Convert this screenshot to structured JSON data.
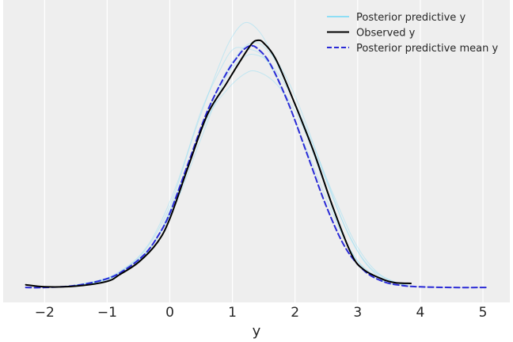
{
  "chart_data": {
    "type": "line",
    "title": "",
    "xlabel": "y",
    "ylabel": "",
    "xlim": [
      -2.65,
      5.4
    ],
    "ylim": [
      0,
      0.5
    ],
    "grid": true,
    "background_color": "#eeeeee",
    "x_ticks": [
      -2,
      -1,
      0,
      1,
      2,
      3,
      4,
      5
    ],
    "x_tick_labels": [
      "−2",
      "−1",
      "0",
      "1",
      "2",
      "3",
      "4",
      "5"
    ],
    "legend": {
      "placement": "top-right",
      "entries": [
        {
          "label": "Posterior predictive y",
          "color": "#6fd8f7",
          "style": "solid"
        },
        {
          "label": "Observed y",
          "color": "#000000",
          "style": "solid"
        },
        {
          "label": "Posterior predictive mean y",
          "color": "#2a2ad6",
          "style": "dashed"
        }
      ]
    },
    "series": [
      {
        "name": "Observed y",
        "color": "#000000",
        "style": "solid",
        "x": [
          -2.3,
          -2.0,
          -1.5,
          -1.0,
          -0.8,
          -0.5,
          -0.2,
          0.0,
          0.3,
          0.6,
          0.9,
          1.1,
          1.3,
          1.4,
          1.5,
          1.7,
          2.0,
          2.3,
          2.6,
          2.9,
          3.1,
          3.4,
          3.6,
          3.85
        ],
        "y": [
          0.005,
          0.002,
          0.003,
          0.01,
          0.02,
          0.038,
          0.067,
          0.102,
          0.18,
          0.255,
          0.3,
          0.33,
          0.358,
          0.364,
          0.36,
          0.335,
          0.27,
          0.2,
          0.12,
          0.05,
          0.027,
          0.013,
          0.008,
          0.007
        ]
      },
      {
        "name": "Posterior predictive mean y",
        "color": "#2a2ad6",
        "style": "dashed",
        "x": [
          -2.3,
          -2.0,
          -1.5,
          -1.0,
          -0.7,
          -0.4,
          -0.2,
          0.0,
          0.3,
          0.6,
          0.9,
          1.1,
          1.2,
          1.3,
          1.4,
          1.6,
          1.9,
          2.2,
          2.5,
          2.8,
          3.1,
          3.4,
          3.7,
          4.0,
          4.5,
          5.05
        ],
        "y": [
          0.001,
          0.001,
          0.004,
          0.014,
          0.028,
          0.05,
          0.075,
          0.11,
          0.185,
          0.26,
          0.315,
          0.342,
          0.352,
          0.356,
          0.352,
          0.33,
          0.27,
          0.195,
          0.12,
          0.06,
          0.026,
          0.01,
          0.004,
          0.002,
          0.001,
          0.001
        ]
      },
      {
        "name": "Posterior predictive y",
        "color": "#6fd8f7",
        "style": "solid",
        "x": [
          -1.8,
          -1.2,
          -0.8,
          -0.4,
          0.0,
          0.4,
          0.8,
          1.0,
          1.2,
          1.4,
          1.6,
          2.0,
          2.4,
          2.8,
          3.2,
          3.6
        ],
        "y": [
          0.002,
          0.008,
          0.025,
          0.055,
          0.12,
          0.23,
          0.33,
          0.37,
          0.39,
          0.38,
          0.35,
          0.27,
          0.17,
          0.07,
          0.02,
          0.004
        ]
      },
      {
        "name": "Posterior predictive y",
        "color": "#6fd8f7",
        "style": "solid",
        "x": [
          -1.6,
          -1.0,
          -0.6,
          -0.2,
          0.2,
          0.6,
          0.9,
          1.2,
          1.4,
          1.7,
          2.0,
          2.4,
          2.8,
          3.2,
          3.7
        ],
        "y": [
          0.003,
          0.015,
          0.035,
          0.075,
          0.16,
          0.25,
          0.29,
          0.315,
          0.318,
          0.3,
          0.26,
          0.18,
          0.09,
          0.03,
          0.005
        ]
      },
      {
        "name": "Posterior predictive y",
        "color": "#6fd8f7",
        "style": "solid",
        "x": [
          -1.9,
          -1.3,
          -0.8,
          -0.4,
          0.0,
          0.4,
          0.8,
          1.1,
          1.3,
          1.5,
          1.8,
          2.1,
          2.5,
          2.9,
          3.3,
          3.8
        ],
        "y": [
          0.001,
          0.006,
          0.02,
          0.05,
          0.11,
          0.21,
          0.3,
          0.345,
          0.36,
          0.355,
          0.32,
          0.26,
          0.16,
          0.07,
          0.02,
          0.003
        ]
      },
      {
        "name": "Posterior predictive y",
        "color": "#6fd8f7",
        "style": "solid",
        "x": [
          -1.7,
          -1.1,
          -0.7,
          -0.3,
          0.1,
          0.5,
          0.8,
          1.0,
          1.2,
          1.5,
          1.8,
          2.2,
          2.6,
          3.0,
          3.5
        ],
        "y": [
          0.002,
          0.012,
          0.03,
          0.07,
          0.15,
          0.26,
          0.32,
          0.35,
          0.352,
          0.34,
          0.29,
          0.2,
          0.11,
          0.04,
          0.006
        ]
      },
      {
        "name": "Posterior predictive y",
        "color": "#6fd8f7",
        "style": "solid",
        "x": [
          -1.8,
          -1.2,
          -0.7,
          -0.3,
          0.1,
          0.5,
          0.9,
          1.2,
          1.4,
          1.6,
          1.9,
          2.2,
          2.6,
          3.0,
          3.4,
          3.9
        ],
        "y": [
          0.001,
          0.008,
          0.025,
          0.06,
          0.125,
          0.22,
          0.31,
          0.34,
          0.342,
          0.33,
          0.29,
          0.23,
          0.14,
          0.06,
          0.017,
          0.002
        ]
      }
    ]
  }
}
